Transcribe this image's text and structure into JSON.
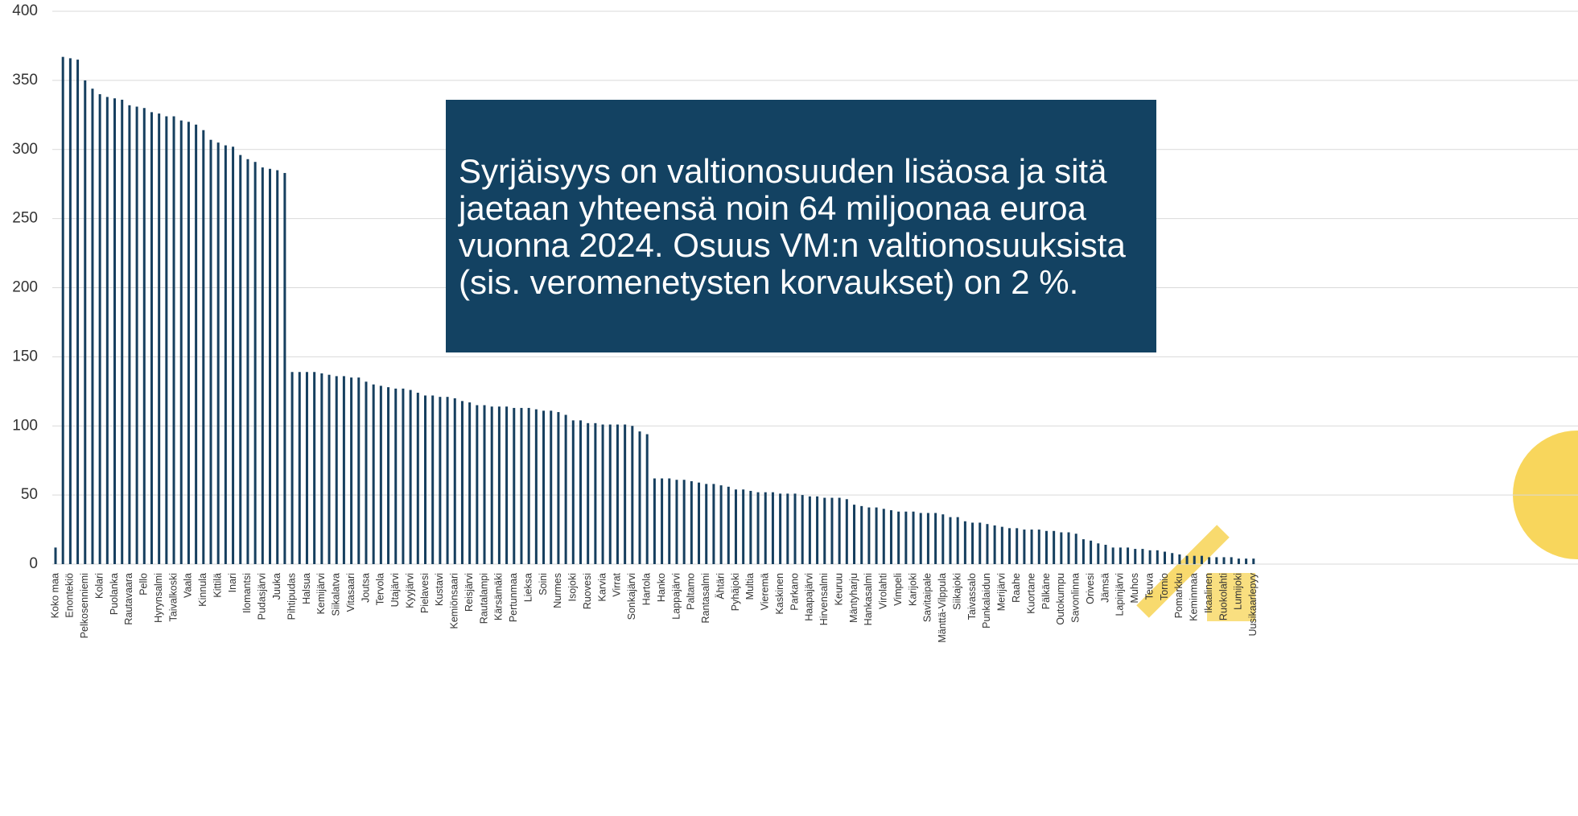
{
  "chart_data": {
    "type": "bar",
    "annotation": [
      "Syrjäisyys on valtionosuuden lisäosa ja sitä",
      "jaetaan yhteensä noin 64 miljoonaa euroa",
      "vuonna 2024. Osuus VM:n valtionosuuksista",
      "(sis. veromenetysten korvaukset) on 2 %."
    ],
    "categories": [
      "Koko maa",
      null,
      "Enontekiö",
      null,
      "Pelkosenniemi",
      null,
      "Kolari",
      null,
      "Puolanka",
      null,
      "Rautavaara",
      null,
      "Pello",
      null,
      "Hyrynsalmi",
      null,
      "Taivalkoski",
      null,
      "Vaala",
      null,
      "Kinnula",
      null,
      "Kittilä",
      null,
      "Inari",
      null,
      "Ilomantsi",
      null,
      "Pudasjärvi",
      null,
      "Juuka",
      null,
      "Pihtipudas",
      null,
      "Halsua",
      null,
      "Kemijärvi",
      null,
      "Siikalatva",
      null,
      "Vitasaari",
      null,
      "Joutsa",
      null,
      "Tervola",
      null,
      "Utajärvi",
      null,
      "Kyyjärvi",
      null,
      "Pielavesi",
      null,
      "Kustavi",
      null,
      "Kemiönsaari",
      null,
      "Reisjärvi",
      null,
      "Rautalampi",
      null,
      "Kärsämäki",
      null,
      "Pertunmaa",
      null,
      "Lieksa",
      null,
      "Soini",
      null,
      "Nurmes",
      null,
      "Isojoki",
      null,
      "Ruovesi",
      null,
      "Karvia",
      null,
      "Virrat",
      null,
      "Sonkajärvi",
      null,
      "Hartola",
      null,
      "Hanko",
      null,
      "Lappajärvi",
      null,
      "Paltamo",
      null,
      "Rantasalmi",
      null,
      "Ähtäri",
      null,
      "Pyhäjoki",
      null,
      "Multia",
      null,
      "Vieremä",
      null,
      "Kaskinen",
      null,
      "Parkano",
      null,
      "Haapajärvi",
      null,
      "Hirvensalmi",
      null,
      "Keuruu",
      null,
      "Mäntyharju",
      null,
      "Hankasalmi",
      null,
      "Virolahti",
      null,
      "Vimpeli",
      null,
      "Karijoki",
      null,
      "Savitaipale",
      null,
      "Mänttä-Vilppula",
      null,
      "Siikajoki",
      null,
      "Taivassalo",
      null,
      "Punkalaidun",
      null,
      "Merijärvi",
      null,
      "Raahe",
      null,
      "Kuortane",
      null,
      "Pälkäne",
      null,
      "Outokumpu",
      null,
      "Savonlinna",
      null,
      "Orivesi",
      null,
      "Jämsä",
      null,
      "Lapinjärvi",
      null,
      "Muhos",
      null,
      "Teuva",
      null,
      "Tornio",
      null,
      "Pomarkku",
      null,
      "Keminmaa",
      null,
      "Ikaalinen",
      null,
      "Ruokolahti",
      null,
      "Lumijoki",
      null,
      "Uusikaarlepyy"
    ],
    "values": [
      12,
      367,
      366,
      365,
      350,
      344,
      340,
      338,
      337,
      336,
      332,
      331,
      330,
      327,
      326,
      324,
      324,
      321,
      320,
      318,
      314,
      307,
      305,
      303,
      302,
      296,
      293,
      291,
      287,
      286,
      285,
      283,
      139,
      139,
      139,
      139,
      138,
      137,
      136,
      136,
      135,
      135,
      132,
      130,
      129,
      128,
      127,
      127,
      126,
      124,
      122,
      122,
      121,
      121,
      120,
      118,
      117,
      115,
      115,
      114,
      114,
      114,
      113,
      113,
      113,
      112,
      111,
      111,
      110,
      108,
      104,
      104,
      102,
      102,
      101,
      101,
      101,
      101,
      100,
      96,
      94,
      62,
      62,
      62,
      61,
      61,
      60,
      59,
      58,
      58,
      57,
      56,
      54,
      54,
      53,
      52,
      52,
      52,
      51,
      51,
      51,
      50,
      49,
      49,
      48,
      48,
      48,
      47,
      43,
      42,
      41,
      41,
      40,
      39,
      38,
      38,
      38,
      37,
      37,
      37,
      36,
      34,
      34,
      31,
      30,
      30,
      29,
      28,
      27,
      26,
      26,
      25,
      25,
      25,
      24,
      24,
      23,
      23,
      22,
      18,
      17,
      15,
      14,
      12,
      12,
      12,
      11,
      11,
      10,
      10,
      9,
      8,
      7,
      6,
      6,
      6,
      5,
      5,
      5,
      5,
      4,
      4,
      4
    ],
    "color": "#163f5f",
    "ylim": [
      0,
      400
    ],
    "yticks": [
      0,
      50,
      100,
      150,
      200,
      250,
      300,
      350,
      400
    ],
    "grid": true
  }
}
